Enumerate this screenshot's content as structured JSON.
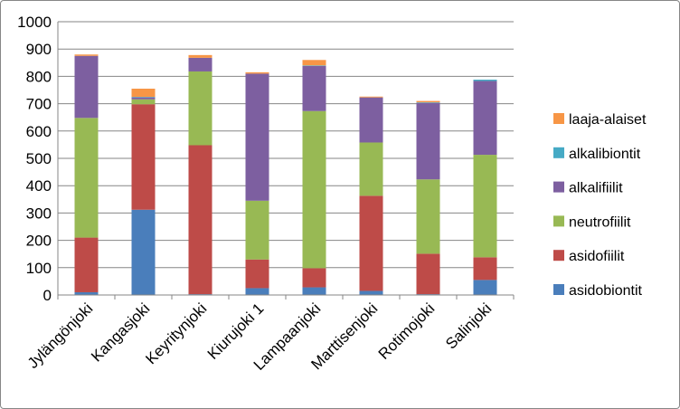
{
  "chart_data": {
    "type": "bar",
    "stacked": true,
    "categories": [
      "Jylängönjoki",
      "Kangasjoki",
      "Keyritynjoki",
      "Kiurujoki 1",
      "Lampaanjoki",
      "Marttisenjoki",
      "Rotimojoki",
      "Salinjoki"
    ],
    "series": [
      {
        "name": "asidobiontit",
        "color": "#4a7ebb",
        "values": [
          10,
          312,
          3,
          25,
          28,
          15,
          3,
          55
        ]
      },
      {
        "name": "asidofiilit",
        "color": "#be4b48",
        "values": [
          200,
          386,
          545,
          105,
          70,
          348,
          148,
          83
        ]
      },
      {
        "name": "neutrofiilit",
        "color": "#98b954",
        "values": [
          438,
          18,
          270,
          215,
          575,
          195,
          272,
          375
        ]
      },
      {
        "name": "alkalifiilit",
        "color": "#7d5fa0",
        "values": [
          227,
          7,
          50,
          465,
          165,
          165,
          280,
          270
        ]
      },
      {
        "name": "alkalibiontit",
        "color": "#46aac5",
        "values": [
          0,
          2,
          0,
          0,
          2,
          0,
          2,
          5
        ]
      },
      {
        "name": "laaja-alaiset",
        "color": "#f79646",
        "values": [
          5,
          30,
          10,
          5,
          20,
          3,
          5,
          0
        ]
      }
    ],
    "yticks": [
      "0",
      "100",
      "200",
      "300",
      "400",
      "500",
      "600",
      "700",
      "800",
      "900",
      "1000"
    ],
    "ylim": [
      0,
      1000
    ],
    "title": "",
    "xlabel": "",
    "ylabel": "",
    "grid": true,
    "legend_position": "right"
  }
}
